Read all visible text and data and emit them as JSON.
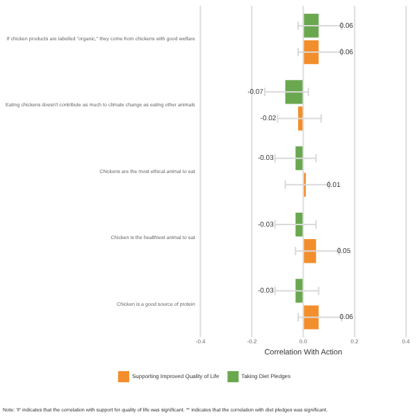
{
  "chart_data": {
    "type": "bar",
    "orientation": "horizontal",
    "xlabel": "Correlation With Action",
    "categories": [
      "If chicken products are labelled \"organic,\" they come from chickens with good welfare",
      "Eating chickens doesn't contribute as much to climate change as eating other animals",
      "Chickens are the most ethical animal to eat",
      "Chicken is the healthiest animal to eat",
      "Chicken is a good source of protein"
    ],
    "series": [
      {
        "name": "Supporting Improved Quality of Life",
        "color": "#f28e2b",
        "values": [
          0.06,
          -0.02,
          0.01,
          0.05,
          0.06
        ],
        "errors": [
          [
            -0.02,
            0.15
          ],
          [
            -0.1,
            0.07
          ],
          [
            -0.07,
            0.1
          ],
          [
            -0.03,
            0.14
          ],
          [
            -0.02,
            0.15
          ]
        ]
      },
      {
        "name": "Taking Diet Pledges",
        "color": "#6aa84f",
        "values": [
          0.06,
          -0.07,
          -0.03,
          -0.03,
          -0.03
        ],
        "errors": [
          [
            -0.02,
            0.15
          ],
          [
            -0.15,
            0.02
          ],
          [
            -0.11,
            0.05
          ],
          [
            -0.11,
            0.05
          ],
          [
            -0.11,
            0.06
          ]
        ]
      }
    ],
    "xlim": [
      -0.4,
      0.4
    ],
    "xticks": [
      -0.4,
      -0.2,
      {
        "value": 0,
        "label": "0.0"
      },
      0.2,
      0.4
    ],
    "grid": "x",
    "legend": "bottom",
    "data_labels": true,
    "annotations": [
      "Note: '#' indicates that the correlation with support for quality of life was significant. '*' indicates that the correlation with diet pledges was significant."
    ]
  }
}
